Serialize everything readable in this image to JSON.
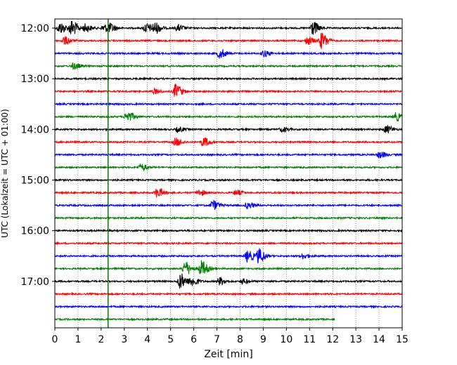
{
  "chart_data": {
    "type": "line",
    "title": "",
    "xlabel": "Zeit  [min]",
    "ylabel": "UTC (Lokalzeit = UTC + 01:00)",
    "xlim": [
      0,
      15
    ],
    "xticks": [
      0,
      1,
      2,
      3,
      4,
      5,
      6,
      7,
      8,
      9,
      10,
      11,
      12,
      13,
      14,
      15
    ],
    "grid": "vertical-dotted",
    "start_time": "12:00",
    "row_interval_min": 15,
    "row_count": 24,
    "time_labels": [
      {
        "label": "12:00",
        "row": 0
      },
      {
        "label": "13:00",
        "row": 4
      },
      {
        "label": "14:00",
        "row": 8
      },
      {
        "label": "15:00",
        "row": 12
      },
      {
        "label": "16:00",
        "row": 16
      },
      {
        "label": "17:00",
        "row": 20
      }
    ],
    "row_colors": [
      "#000000",
      "#ff0000",
      "#0000ff",
      "#008000"
    ],
    "last_row_end_min": 12.1,
    "marker_line_x": 2.3,
    "marker_line_color": "#008000",
    "events": [
      {
        "row": 0,
        "x": 0.2,
        "amp": 0.7
      },
      {
        "row": 0,
        "x": 0.7,
        "amp": 1.0
      },
      {
        "row": 0,
        "x": 1.3,
        "amp": 0.5
      },
      {
        "row": 0,
        "x": 2.1,
        "amp": 0.5
      },
      {
        "row": 0,
        "x": 2.4,
        "amp": 0.4
      },
      {
        "row": 0,
        "x": 3.9,
        "amp": 0.6
      },
      {
        "row": 0,
        "x": 4.3,
        "amp": 0.7
      },
      {
        "row": 0,
        "x": 5.3,
        "amp": 0.4
      },
      {
        "row": 0,
        "x": 11.1,
        "amp": 0.9
      },
      {
        "row": 1,
        "x": 0.4,
        "amp": 0.5
      },
      {
        "row": 1,
        "x": 10.9,
        "amp": 0.5
      },
      {
        "row": 1,
        "x": 11.5,
        "amp": 1.0
      },
      {
        "row": 2,
        "x": 7.1,
        "amp": 0.6
      },
      {
        "row": 2,
        "x": 9.0,
        "amp": 0.4
      },
      {
        "row": 3,
        "x": 0.8,
        "amp": 0.4
      },
      {
        "row": 5,
        "x": 5.2,
        "amp": 0.9
      },
      {
        "row": 5,
        "x": 4.3,
        "amp": 0.3
      },
      {
        "row": 7,
        "x": 3.1,
        "amp": 0.7
      },
      {
        "row": 7,
        "x": 14.7,
        "amp": 0.5
      },
      {
        "row": 8,
        "x": 5.3,
        "amp": 0.3
      },
      {
        "row": 8,
        "x": 9.8,
        "amp": 0.3
      },
      {
        "row": 8,
        "x": 14.3,
        "amp": 0.5
      },
      {
        "row": 9,
        "x": 5.2,
        "amp": 0.5
      },
      {
        "row": 9,
        "x": 6.4,
        "amp": 0.6
      },
      {
        "row": 10,
        "x": 14.0,
        "amp": 0.4
      },
      {
        "row": 11,
        "x": 3.7,
        "amp": 0.4
      },
      {
        "row": 13,
        "x": 4.4,
        "amp": 0.6
      },
      {
        "row": 13,
        "x": 6.2,
        "amp": 0.4
      },
      {
        "row": 13,
        "x": 7.8,
        "amp": 0.3
      },
      {
        "row": 14,
        "x": 6.8,
        "amp": 0.6
      },
      {
        "row": 14,
        "x": 8.3,
        "amp": 0.4
      },
      {
        "row": 18,
        "x": 8.3,
        "amp": 0.7
      },
      {
        "row": 18,
        "x": 8.8,
        "amp": 0.9
      },
      {
        "row": 18,
        "x": 10.7,
        "amp": 0.3
      },
      {
        "row": 19,
        "x": 5.6,
        "amp": 0.9
      },
      {
        "row": 19,
        "x": 6.3,
        "amp": 1.0
      },
      {
        "row": 20,
        "x": 5.4,
        "amp": 1.0
      },
      {
        "row": 20,
        "x": 5.9,
        "amp": 0.6
      },
      {
        "row": 20,
        "x": 7.1,
        "amp": 0.5
      },
      {
        "row": 20,
        "x": 8.1,
        "amp": 0.3
      }
    ]
  }
}
